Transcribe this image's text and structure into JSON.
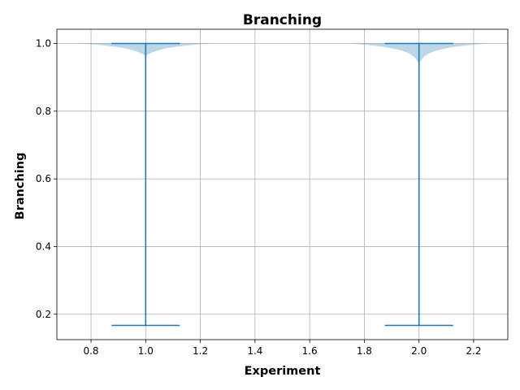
{
  "chart_data": {
    "type": "violin",
    "title": "Branching",
    "xlabel": "Experiment",
    "ylabel": "Branching",
    "xlim": [
      0.675,
      2.325
    ],
    "ylim": [
      0.125,
      1.042
    ],
    "xticks": [
      "0.8",
      "1.0",
      "1.2",
      "1.4",
      "1.6",
      "1.8",
      "2.0",
      "2.2"
    ],
    "yticks": [
      "0.2",
      "0.4",
      "0.6",
      "0.8",
      "1.0"
    ],
    "grid": true,
    "colors": {
      "violin_body": "#1f77b4",
      "violin_lines": "#1f77b4"
    },
    "violins": [
      {
        "position": 1.0,
        "min": 0.167,
        "max": 1.0,
        "cap_half_width": 0.125,
        "profile": [
          [
            1.0,
            0.25
          ],
          [
            0.997,
            0.19
          ],
          [
            0.994,
            0.15
          ],
          [
            0.99,
            0.11
          ],
          [
            0.985,
            0.07
          ],
          [
            0.978,
            0.04
          ],
          [
            0.972,
            0.02
          ],
          [
            0.966,
            0.005
          ],
          [
            0.96,
            0.0
          ]
        ]
      },
      {
        "position": 2.0,
        "min": 0.167,
        "max": 1.0,
        "cap_half_width": 0.125,
        "profile": [
          [
            1.0,
            0.25
          ],
          [
            0.995,
            0.18
          ],
          [
            0.99,
            0.13
          ],
          [
            0.985,
            0.095
          ],
          [
            0.978,
            0.06
          ],
          [
            0.97,
            0.035
          ],
          [
            0.96,
            0.018
          ],
          [
            0.95,
            0.007
          ],
          [
            0.94,
            0.0
          ]
        ]
      }
    ]
  }
}
